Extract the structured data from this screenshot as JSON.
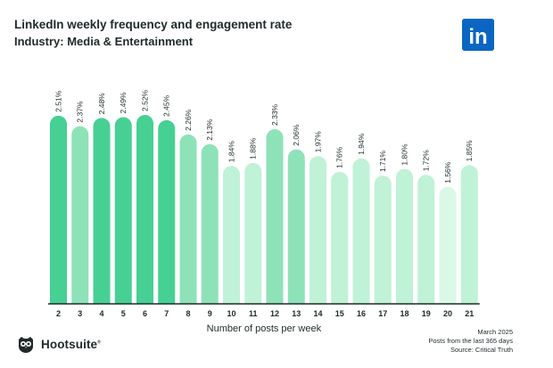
{
  "header": {
    "title": "LinkedIn weekly frequency and engagement rate",
    "subtitle": "Industry: Media & Entertainment"
  },
  "logos": {
    "linkedin": "in",
    "brand": "Hootsuite",
    "brand_mark": "®"
  },
  "footer": {
    "date": "March 2025",
    "period": "Posts from the last 365 days",
    "source": "Source: Critical Truth"
  },
  "chart_data": {
    "type": "bar",
    "title": "LinkedIn weekly frequency and engagement rate",
    "subtitle": "Industry: Media & Entertainment",
    "xlabel": "Number of posts per week",
    "ylabel": "",
    "categories": [
      "2",
      "3",
      "4",
      "5",
      "6",
      "7",
      "8",
      "9",
      "10",
      "11",
      "12",
      "13",
      "14",
      "15",
      "16",
      "17",
      "18",
      "19",
      "20",
      "21"
    ],
    "values": [
      2.51,
      2.37,
      2.48,
      2.49,
      2.52,
      2.45,
      2.26,
      2.13,
      1.84,
      1.88,
      2.33,
      2.06,
      1.97,
      1.76,
      1.94,
      1.71,
      1.8,
      1.72,
      1.56,
      1.85
    ],
    "value_labels": [
      "2.51%",
      "2.37%",
      "2.48%",
      "2.49%",
      "2.52%",
      "2.45%",
      "2.26%",
      "2.13%",
      "1.84%",
      "1.88%",
      "2.33%",
      "2.06%",
      "1.97%",
      "1.76%",
      "1.94%",
      "1.71%",
      "1.80%",
      "1.72%",
      "1.56%",
      "1.85%"
    ],
    "ylim": [
      0,
      2.52
    ],
    "grid": false,
    "legend": "none",
    "colors": {
      "dark": "#46d093",
      "medium": "#8ee2b8",
      "light": "#bff2d6",
      "pale": "#d9f9e6",
      "text": "#1f2a2b",
      "baseline": "#1f2a2b",
      "linkedin": "#0a66c2"
    }
  }
}
